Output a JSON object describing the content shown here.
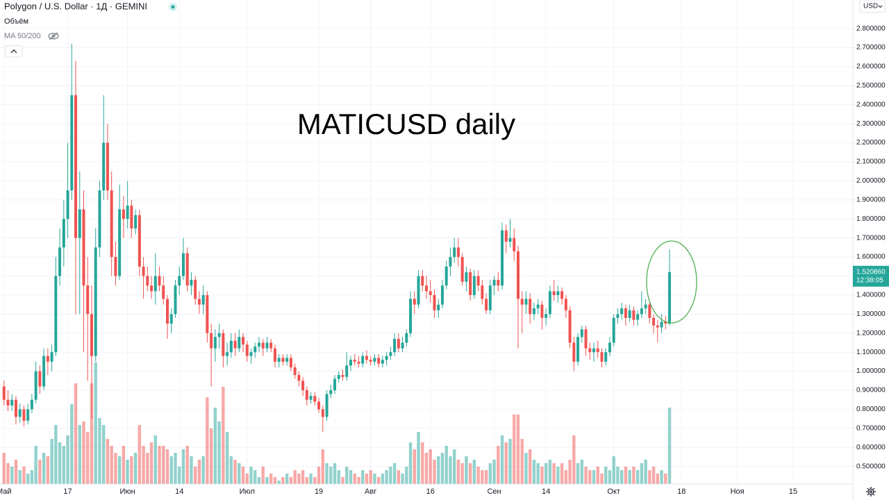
{
  "chart_data": {
    "type": "candlestick",
    "title": "MATICUSD daily",
    "subtitle": "Polygon / U.S. Dollar · 1Д · GEMINI",
    "indicators": [
      "Объём",
      "MA 50/200"
    ],
    "currency": "USD",
    "up_color": "#26a69a",
    "down_color": "#ef5350",
    "grid": true,
    "last_price": {
      "value": 1.52086,
      "label": "1.520860"
    },
    "countdown": "12:38:05",
    "xlim": [
      "04-30",
      "11-30"
    ],
    "xticks": [
      {
        "value": "05-01",
        "label": "Май"
      },
      {
        "value": "05-17",
        "label": "17"
      },
      {
        "value": "06-01",
        "label": "Июн"
      },
      {
        "value": "06-14",
        "label": "14"
      },
      {
        "value": "07-01",
        "label": "Июл"
      },
      {
        "value": "07-19",
        "label": "19"
      },
      {
        "value": "08-01",
        "label": "Авг"
      },
      {
        "value": "08-16",
        "label": "16"
      },
      {
        "value": "09-01",
        "label": "Сен"
      },
      {
        "value": "09-14",
        "label": "14"
      },
      {
        "value": "10-01",
        "label": "Окт"
      },
      {
        "value": "10-18",
        "label": "18"
      },
      {
        "value": "11-01",
        "label": "Ноя"
      },
      {
        "value": "11-15",
        "label": "15"
      }
    ],
    "ylim": [
      0.36,
      2.95
    ],
    "yticks": [
      {
        "value": 0.5,
        "label": "0.500000"
      },
      {
        "value": 0.6,
        "label": "0.600000"
      },
      {
        "value": 0.7,
        "label": "0.700000"
      },
      {
        "value": 0.8,
        "label": "0.800000"
      },
      {
        "value": 0.9,
        "label": "0.900000"
      },
      {
        "value": 1.0,
        "label": "1.000000"
      },
      {
        "value": 1.1,
        "label": "1.100000"
      },
      {
        "value": 1.2,
        "label": "1.200000"
      },
      {
        "value": 1.3,
        "label": "1.300000"
      },
      {
        "value": 1.4,
        "label": "1.400000"
      },
      {
        "value": 1.5,
        "label": "1.500000"
      },
      {
        "value": 1.6,
        "label": "1.600000"
      },
      {
        "value": 1.7,
        "label": "1.700000"
      },
      {
        "value": 1.8,
        "label": "1.800000"
      },
      {
        "value": 1.9,
        "label": "1.900000"
      },
      {
        "value": 2.0,
        "label": "2.000000"
      },
      {
        "value": 2.1,
        "label": "2.100000"
      },
      {
        "value": 2.2,
        "label": "2.200000"
      },
      {
        "value": 2.3,
        "label": "2.300000"
      },
      {
        "value": 2.4,
        "label": "2.400000"
      },
      {
        "value": 2.5,
        "label": "2.500000"
      },
      {
        "value": 2.6,
        "label": "2.600000"
      },
      {
        "value": 2.7,
        "label": "2.700000"
      },
      {
        "value": 2.8,
        "label": "2.800000"
      }
    ],
    "x": [
      "05-01",
      "05-02",
      "05-03",
      "05-04",
      "05-05",
      "05-06",
      "05-07",
      "05-08",
      "05-09",
      "05-10",
      "05-11",
      "05-12",
      "05-13",
      "05-14",
      "05-15",
      "05-16",
      "05-17",
      "05-18",
      "05-19",
      "05-20",
      "05-21",
      "05-22",
      "05-23",
      "05-24",
      "05-25",
      "05-26",
      "05-27",
      "05-28",
      "05-29",
      "05-30",
      "05-31",
      "06-01",
      "06-02",
      "06-03",
      "06-04",
      "06-05",
      "06-06",
      "06-07",
      "06-08",
      "06-09",
      "06-10",
      "06-11",
      "06-12",
      "06-13",
      "06-14",
      "06-15",
      "06-16",
      "06-17",
      "06-18",
      "06-19",
      "06-20",
      "06-21",
      "06-22",
      "06-23",
      "06-24",
      "06-25",
      "06-26",
      "06-27",
      "06-28",
      "06-29",
      "06-30",
      "07-01",
      "07-02",
      "07-03",
      "07-04",
      "07-05",
      "07-06",
      "07-07",
      "07-08",
      "07-09",
      "07-10",
      "07-11",
      "07-12",
      "07-13",
      "07-14",
      "07-15",
      "07-16",
      "07-17",
      "07-18",
      "07-19",
      "07-20",
      "07-21",
      "07-22",
      "07-23",
      "07-24",
      "07-25",
      "07-26",
      "07-27",
      "07-28",
      "07-29",
      "07-30",
      "07-31",
      "08-01",
      "08-02",
      "08-03",
      "08-04",
      "08-05",
      "08-06",
      "08-07",
      "08-08",
      "08-09",
      "08-10",
      "08-11",
      "08-12",
      "08-13",
      "08-14",
      "08-15",
      "08-16",
      "08-17",
      "08-18",
      "08-19",
      "08-20",
      "08-21",
      "08-22",
      "08-23",
      "08-24",
      "08-25",
      "08-26",
      "08-27",
      "08-28",
      "08-29",
      "08-30",
      "08-31",
      "09-01",
      "09-02",
      "09-03",
      "09-04",
      "09-05",
      "09-06",
      "09-07",
      "09-08",
      "09-09",
      "09-10",
      "09-11",
      "09-12",
      "09-13",
      "09-14",
      "09-15",
      "09-16",
      "09-17",
      "09-18",
      "09-19",
      "09-20",
      "09-21",
      "09-22",
      "09-23",
      "09-24",
      "09-25",
      "09-26",
      "09-27",
      "09-28",
      "09-29",
      "09-30",
      "10-01",
      "10-02",
      "10-03",
      "10-04",
      "10-05",
      "10-06",
      "10-07",
      "10-08",
      "10-09",
      "10-10",
      "10-11",
      "10-12",
      "10-13",
      "10-14",
      "10-15"
    ],
    "ohlc": [
      [
        0.92,
        0.95,
        0.82,
        0.85
      ],
      [
        0.85,
        0.9,
        0.79,
        0.82
      ],
      [
        0.82,
        0.88,
        0.79,
        0.85
      ],
      [
        0.85,
        0.87,
        0.72,
        0.76
      ],
      [
        0.76,
        0.83,
        0.73,
        0.8
      ],
      [
        0.8,
        0.82,
        0.71,
        0.74
      ],
      [
        0.74,
        0.83,
        0.72,
        0.8
      ],
      [
        0.8,
        0.88,
        0.78,
        0.85
      ],
      [
        0.85,
        1.05,
        0.83,
        1.0
      ],
      [
        1.0,
        1.03,
        0.88,
        0.92
      ],
      [
        0.92,
        1.12,
        0.9,
        1.08
      ],
      [
        1.08,
        1.12,
        0.98,
        1.05
      ],
      [
        1.05,
        1.14,
        1.0,
        1.1
      ],
      [
        1.1,
        1.6,
        1.08,
        1.5
      ],
      [
        1.5,
        1.75,
        1.45,
        1.65
      ],
      [
        1.65,
        1.9,
        1.55,
        1.8
      ],
      [
        1.8,
        2.2,
        1.7,
        1.95
      ],
      [
        1.95,
        2.72,
        1.9,
        2.45
      ],
      [
        2.45,
        2.63,
        1.3,
        1.7
      ],
      [
        1.7,
        2.05,
        1.3,
        1.85
      ],
      [
        1.85,
        1.95,
        1.1,
        1.45
      ],
      [
        1.45,
        1.6,
        0.95,
        1.3
      ],
      [
        1.3,
        1.45,
        0.75,
        1.08
      ],
      [
        1.08,
        1.75,
        1.05,
        1.65
      ],
      [
        1.65,
        2.0,
        1.6,
        1.95
      ],
      [
        1.95,
        2.45,
        1.9,
        2.2
      ],
      [
        2.2,
        2.3,
        1.9,
        1.95
      ],
      [
        1.95,
        2.05,
        1.5,
        1.6
      ],
      [
        1.6,
        1.68,
        1.45,
        1.5
      ],
      [
        1.5,
        1.98,
        1.48,
        1.85
      ],
      [
        1.85,
        1.92,
        1.7,
        1.8
      ],
      [
        1.8,
        2.0,
        1.75,
        1.87
      ],
      [
        1.87,
        1.9,
        1.7,
        1.75
      ],
      [
        1.75,
        1.85,
        1.72,
        1.82
      ],
      [
        1.82,
        1.85,
        1.5,
        1.55
      ],
      [
        1.55,
        1.6,
        1.38,
        1.5
      ],
      [
        1.5,
        1.55,
        1.42,
        1.45
      ],
      [
        1.45,
        1.5,
        1.38,
        1.42
      ],
      [
        1.42,
        1.62,
        1.35,
        1.5
      ],
      [
        1.5,
        1.55,
        1.42,
        1.45
      ],
      [
        1.45,
        1.5,
        1.35,
        1.38
      ],
      [
        1.38,
        1.4,
        1.17,
        1.25
      ],
      [
        1.25,
        1.33,
        1.2,
        1.3
      ],
      [
        1.3,
        1.48,
        1.28,
        1.45
      ],
      [
        1.45,
        1.55,
        1.4,
        1.5
      ],
      [
        1.5,
        1.7,
        1.48,
        1.62
      ],
      [
        1.62,
        1.65,
        1.42,
        1.45
      ],
      [
        1.45,
        1.52,
        1.4,
        1.48
      ],
      [
        1.48,
        1.5,
        1.35,
        1.38
      ],
      [
        1.38,
        1.42,
        1.3,
        1.35
      ],
      [
        1.35,
        1.45,
        1.3,
        1.4
      ],
      [
        1.4,
        1.42,
        1.15,
        1.2
      ],
      [
        1.2,
        1.25,
        0.92,
        1.12
      ],
      [
        1.12,
        1.22,
        1.05,
        1.18
      ],
      [
        1.18,
        1.25,
        1.12,
        1.2
      ],
      [
        1.2,
        1.22,
        1.02,
        1.08
      ],
      [
        1.08,
        1.15,
        1.03,
        1.1
      ],
      [
        1.1,
        1.2,
        1.07,
        1.16
      ],
      [
        1.16,
        1.2,
        1.08,
        1.12
      ],
      [
        1.12,
        1.22,
        1.1,
        1.18
      ],
      [
        1.18,
        1.2,
        1.1,
        1.14
      ],
      [
        1.14,
        1.16,
        1.05,
        1.08
      ],
      [
        1.08,
        1.12,
        1.04,
        1.1
      ],
      [
        1.1,
        1.15,
        1.07,
        1.13
      ],
      [
        1.13,
        1.18,
        1.1,
        1.15
      ],
      [
        1.15,
        1.17,
        1.08,
        1.12
      ],
      [
        1.12,
        1.18,
        1.1,
        1.15
      ],
      [
        1.15,
        1.17,
        1.1,
        1.12
      ],
      [
        1.12,
        1.14,
        1.02,
        1.05
      ],
      [
        1.05,
        1.09,
        1.02,
        1.07
      ],
      [
        1.07,
        1.09,
        1.03,
        1.05
      ],
      [
        1.05,
        1.09,
        1.03,
        1.07
      ],
      [
        1.07,
        1.09,
        1.0,
        1.02
      ],
      [
        1.02,
        1.04,
        0.96,
        0.98
      ],
      [
        0.98,
        1.0,
        0.92,
        0.95
      ],
      [
        0.95,
        0.97,
        0.87,
        0.9
      ],
      [
        0.9,
        0.92,
        0.82,
        0.85
      ],
      [
        0.85,
        0.89,
        0.83,
        0.87
      ],
      [
        0.87,
        0.89,
        0.82,
        0.84
      ],
      [
        0.84,
        0.86,
        0.78,
        0.8
      ],
      [
        0.8,
        0.82,
        0.68,
        0.76
      ],
      [
        0.76,
        0.9,
        0.74,
        0.88
      ],
      [
        0.88,
        0.93,
        0.86,
        0.9
      ],
      [
        0.9,
        0.98,
        0.88,
        0.96
      ],
      [
        0.96,
        1.0,
        0.94,
        0.98
      ],
      [
        0.98,
        1.01,
        0.95,
        0.97
      ],
      [
        0.97,
        1.1,
        0.95,
        1.03
      ],
      [
        1.03,
        1.08,
        1.0,
        1.06
      ],
      [
        1.06,
        1.09,
        1.03,
        1.05
      ],
      [
        1.05,
        1.08,
        1.02,
        1.04
      ],
      [
        1.04,
        1.1,
        1.02,
        1.08
      ],
      [
        1.08,
        1.11,
        1.04,
        1.06
      ],
      [
        1.06,
        1.08,
        1.03,
        1.05
      ],
      [
        1.05,
        1.09,
        1.03,
        1.07
      ],
      [
        1.07,
        1.09,
        1.02,
        1.04
      ],
      [
        1.04,
        1.08,
        1.02,
        1.06
      ],
      [
        1.06,
        1.1,
        1.03,
        1.08
      ],
      [
        1.08,
        1.13,
        1.06,
        1.1
      ],
      [
        1.1,
        1.2,
        1.08,
        1.17
      ],
      [
        1.17,
        1.2,
        1.1,
        1.12
      ],
      [
        1.12,
        1.18,
        1.1,
        1.15
      ],
      [
        1.15,
        1.22,
        1.13,
        1.2
      ],
      [
        1.2,
        1.42,
        1.18,
        1.38
      ],
      [
        1.38,
        1.42,
        1.3,
        1.35
      ],
      [
        1.35,
        1.53,
        1.33,
        1.5
      ],
      [
        1.5,
        1.53,
        1.42,
        1.45
      ],
      [
        1.45,
        1.5,
        1.38,
        1.42
      ],
      [
        1.42,
        1.48,
        1.36,
        1.4
      ],
      [
        1.4,
        1.43,
        1.28,
        1.32
      ],
      [
        1.32,
        1.38,
        1.28,
        1.35
      ],
      [
        1.35,
        1.48,
        1.33,
        1.45
      ],
      [
        1.45,
        1.58,
        1.43,
        1.55
      ],
      [
        1.55,
        1.65,
        1.5,
        1.6
      ],
      [
        1.6,
        1.7,
        1.57,
        1.65
      ],
      [
        1.65,
        1.7,
        1.55,
        1.6
      ],
      [
        1.6,
        1.62,
        1.45,
        1.47
      ],
      [
        1.47,
        1.55,
        1.42,
        1.52
      ],
      [
        1.52,
        1.54,
        1.37,
        1.4
      ],
      [
        1.4,
        1.53,
        1.38,
        1.5
      ],
      [
        1.5,
        1.53,
        1.42,
        1.45
      ],
      [
        1.45,
        1.48,
        1.35,
        1.38
      ],
      [
        1.38,
        1.41,
        1.3,
        1.32
      ],
      [
        1.32,
        1.48,
        1.3,
        1.45
      ],
      [
        1.45,
        1.5,
        1.4,
        1.48
      ],
      [
        1.48,
        1.52,
        1.42,
        1.45
      ],
      [
        1.45,
        1.78,
        1.43,
        1.74
      ],
      [
        1.74,
        1.77,
        1.62,
        1.68
      ],
      [
        1.68,
        1.8,
        1.65,
        1.7
      ],
      [
        1.7,
        1.75,
        1.58,
        1.63
      ],
      [
        1.63,
        1.66,
        1.12,
        1.38
      ],
      [
        1.38,
        1.42,
        1.2,
        1.35
      ],
      [
        1.35,
        1.42,
        1.3,
        1.38
      ],
      [
        1.38,
        1.41,
        1.25,
        1.3
      ],
      [
        1.3,
        1.36,
        1.27,
        1.33
      ],
      [
        1.33,
        1.38,
        1.3,
        1.35
      ],
      [
        1.35,
        1.37,
        1.22,
        1.28
      ],
      [
        1.28,
        1.33,
        1.24,
        1.3
      ],
      [
        1.3,
        1.45,
        1.28,
        1.42
      ],
      [
        1.42,
        1.48,
        1.37,
        1.4
      ],
      [
        1.4,
        1.45,
        1.36,
        1.42
      ],
      [
        1.42,
        1.44,
        1.35,
        1.38
      ],
      [
        1.38,
        1.4,
        1.28,
        1.32
      ],
      [
        1.32,
        1.34,
        1.12,
        1.15
      ],
      [
        1.15,
        1.18,
        1.0,
        1.05
      ],
      [
        1.05,
        1.2,
        1.03,
        1.18
      ],
      [
        1.18,
        1.24,
        1.15,
        1.22
      ],
      [
        1.22,
        1.24,
        1.08,
        1.12
      ],
      [
        1.12,
        1.15,
        1.06,
        1.1
      ],
      [
        1.1,
        1.15,
        1.05,
        1.12
      ],
      [
        1.12,
        1.16,
        1.07,
        1.1
      ],
      [
        1.1,
        1.12,
        1.02,
        1.05
      ],
      [
        1.05,
        1.12,
        1.03,
        1.1
      ],
      [
        1.1,
        1.18,
        1.08,
        1.15
      ],
      [
        1.15,
        1.3,
        1.13,
        1.28
      ],
      [
        1.28,
        1.33,
        1.25,
        1.3
      ],
      [
        1.3,
        1.36,
        1.27,
        1.33
      ],
      [
        1.33,
        1.35,
        1.24,
        1.28
      ],
      [
        1.28,
        1.35,
        1.26,
        1.32
      ],
      [
        1.32,
        1.34,
        1.24,
        1.27
      ],
      [
        1.27,
        1.32,
        1.24,
        1.3
      ],
      [
        1.3,
        1.42,
        1.28,
        1.33
      ],
      [
        1.33,
        1.38,
        1.3,
        1.35
      ],
      [
        1.35,
        1.37,
        1.25,
        1.28
      ],
      [
        1.28,
        1.3,
        1.2,
        1.24
      ],
      [
        1.24,
        1.27,
        1.15,
        1.23
      ],
      [
        1.23,
        1.3,
        1.2,
        1.26
      ],
      [
        1.26,
        1.29,
        1.22,
        1.25
      ],
      [
        1.25,
        1.64,
        1.24,
        1.52086
      ]
    ],
    "volume": [
      45,
      30,
      25,
      35,
      20,
      25,
      15,
      20,
      55,
      35,
      45,
      40,
      65,
      85,
      60,
      55,
      70,
      115,
      145,
      85,
      90,
      75,
      145,
      175,
      95,
      85,
      65,
      55,
      45,
      40,
      55,
      35,
      40,
      45,
      85,
      55,
      45,
      60,
      70,
      55,
      55,
      50,
      40,
      45,
      25,
      50,
      55,
      40,
      25,
      35,
      40,
      125,
      80,
      110,
      90,
      140,
      75,
      40,
      35,
      30,
      25,
      15,
      25,
      20,
      10,
      25,
      10,
      15,
      10,
      5,
      10,
      15,
      10,
      20,
      15,
      20,
      10,
      15,
      10,
      25,
      50,
      30,
      25,
      30,
      20,
      10,
      25,
      20,
      15,
      10,
      20,
      15,
      20,
      15,
      10,
      15,
      20,
      25,
      30,
      20,
      15,
      25,
      60,
      50,
      75,
      60,
      45,
      50,
      35,
      40,
      45,
      55,
      40,
      50,
      35,
      30,
      40,
      30,
      35,
      25,
      20,
      20,
      30,
      35,
      55,
      70,
      60,
      65,
      100,
      100,
      65,
      45,
      50,
      35,
      30,
      25,
      30,
      35,
      30,
      25,
      30,
      20,
      35,
      70,
      30,
      35,
      25,
      20,
      20,
      25,
      15,
      25,
      20,
      40,
      25,
      20,
      25,
      20,
      25,
      20,
      30,
      35,
      20,
      25,
      15,
      20,
      15,
      110
    ]
  }
}
